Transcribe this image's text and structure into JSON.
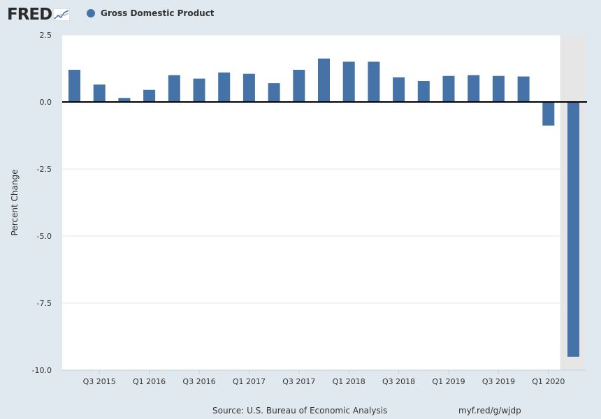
{
  "header": {
    "logo_text": "FRED",
    "legend_label": "Gross Domestic Product"
  },
  "colors": {
    "series": "#4572a7",
    "recession": "#e6e6e6",
    "background": "#e1e9f0"
  },
  "footer": {
    "source": "Source: U.S. Bureau of Economic Analysis",
    "url": "myf.red/g/wjdp"
  },
  "chart_data": {
    "type": "bar",
    "title": "",
    "xlabel": "",
    "ylabel": "Percent Change",
    "ylim": [
      -10.0,
      2.5
    ],
    "yticks": [
      -10.0,
      -7.5,
      -5.0,
      -2.5,
      0.0,
      2.5
    ],
    "ytick_labels": [
      "-10.0",
      "-7.5",
      "-5.0",
      "-2.5",
      "0.0",
      "2.5"
    ],
    "grid": true,
    "categories": [
      "Q2 2015",
      "Q3 2015",
      "Q4 2015",
      "Q1 2016",
      "Q2 2016",
      "Q3 2016",
      "Q4 2016",
      "Q1 2017",
      "Q2 2017",
      "Q3 2017",
      "Q4 2017",
      "Q1 2018",
      "Q2 2018",
      "Q3 2018",
      "Q4 2018",
      "Q1 2019",
      "Q2 2019",
      "Q3 2019",
      "Q4 2019",
      "Q1 2020",
      "Q2 2020"
    ],
    "xtick_labels": [
      "Q3 2015",
      "Q1 2016",
      "Q3 2016",
      "Q1 2017",
      "Q3 2017",
      "Q1 2018",
      "Q3 2018",
      "Q1 2019",
      "Q3 2019",
      "Q1 2020"
    ],
    "series": [
      {
        "name": "Gross Domestic Product",
        "values": [
          1.2,
          0.65,
          0.15,
          0.45,
          1.0,
          0.87,
          1.1,
          1.05,
          0.7,
          1.2,
          1.62,
          1.5,
          1.5,
          0.92,
          0.78,
          0.97,
          1.0,
          0.97,
          0.95,
          -0.88,
          -9.5
        ]
      }
    ],
    "recession_shading": {
      "from": "Q1 2020",
      "to": "Q2 2020"
    }
  }
}
